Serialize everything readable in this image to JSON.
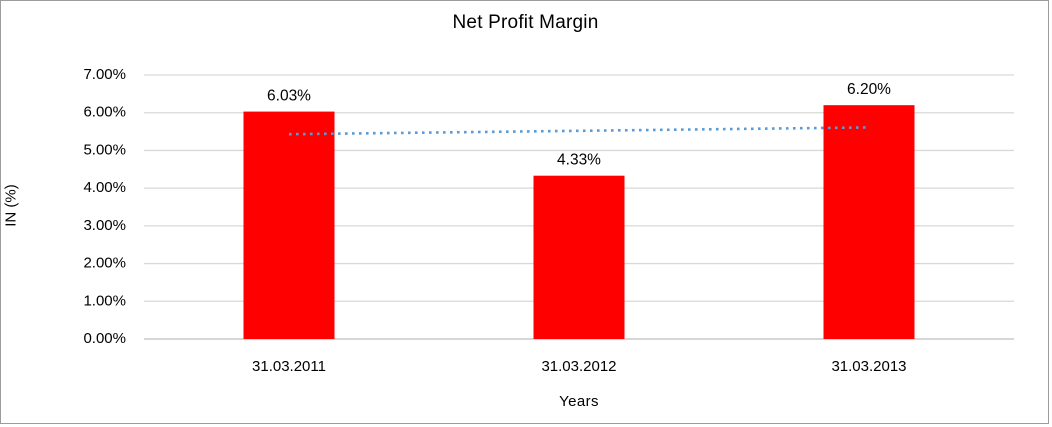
{
  "chart_data": {
    "type": "bar",
    "title": "Net Profit Margin",
    "xlabel": "Years",
    "ylabel": "IN (%)",
    "categories": [
      "31.03.2011",
      "31.03.2012",
      "31.03.2013"
    ],
    "series": [
      {
        "name": "Net Profit Margin",
        "values": [
          6.03,
          4.33,
          6.2
        ]
      }
    ],
    "data_labels": [
      "6.03%",
      "4.33%",
      "6.20%"
    ],
    "ylim": [
      0,
      7
    ],
    "ytick_step": 1,
    "ytick_labels": [
      "0.00%",
      "1.00%",
      "2.00%",
      "3.00%",
      "4.00%",
      "5.00%",
      "6.00%",
      "7.00%"
    ],
    "grid": true,
    "legend": "none",
    "trendline": {
      "type": "linear",
      "style": "dotted",
      "start_value": 5.43,
      "end_value": 5.61
    }
  },
  "colors": {
    "bar": "#ff0000",
    "trendline": "#5b9bd5",
    "gridline": "#d9d9d9",
    "axis_line": "#bfbfbf",
    "text": "#000000",
    "frame_border": "#9c9c9c"
  }
}
